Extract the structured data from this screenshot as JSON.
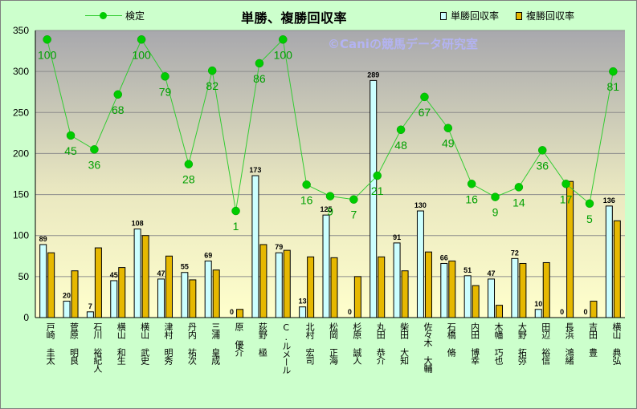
{
  "chart_data": {
    "type": "bar",
    "title": "単勝、複勝回収率",
    "watermark": "©Caniの競馬データ研究室",
    "categories": [
      "戸崎 圭太",
      "菅原 明良",
      "石川 裕紀人",
      "横山 和生",
      "横山 武史",
      "津村 明秀",
      "丹内 祐次",
      "三浦 皇成",
      "原 優介",
      "荻野 極",
      "C.ルメール",
      "北村 宏司",
      "松岡 正海",
      "杉原 誠人",
      "丸田 恭介",
      "柴田 大知",
      "佐々木 大輔",
      "石橋 脩",
      "内田 博幸",
      "木幡 巧也",
      "大野 拓弥",
      "田辺 裕信",
      "長浜 鴻緒",
      "吉田 豊",
      "横山 典弘"
    ],
    "series": [
      {
        "name": "単勝回収率",
        "kind": "bar",
        "color": "#ccffff",
        "values": [
          89,
          20,
          7,
          45,
          108,
          47,
          55,
          69,
          0,
          173,
          79,
          13,
          125,
          0,
          289,
          91,
          130,
          66,
          51,
          47,
          72,
          10,
          0,
          0,
          136
        ],
        "labels": [
          "89",
          "20",
          "7",
          "45",
          "108",
          "47",
          "55",
          "69",
          "0",
          "173",
          "79",
          "13",
          "125",
          "0",
          "289",
          "91",
          "130",
          "66",
          "51",
          "47",
          "72",
          "10",
          "0",
          "0",
          "136"
        ]
      },
      {
        "name": "複勝回収率",
        "kind": "bar",
        "color": "#e6b800",
        "values": [
          79,
          57,
          85,
          61,
          100,
          75,
          46,
          58,
          10,
          89,
          82,
          74,
          73,
          50,
          74,
          57,
          80,
          69,
          39,
          15,
          66,
          67,
          166,
          20,
          118
        ]
      },
      {
        "name": "検定",
        "kind": "line",
        "color": "#00cc00",
        "values": [
          339,
          222,
          205,
          272,
          339,
          294,
          187,
          301,
          130,
          310,
          339,
          162,
          148,
          144,
          173,
          229,
          269,
          231,
          163,
          147,
          159,
          204,
          163,
          139,
          300
        ],
        "labels": [
          "100",
          "45",
          "36",
          "68",
          "100",
          "79",
          "28",
          "82",
          "1",
          "86",
          "100",
          "16",
          "9",
          "7",
          "21",
          "48",
          "67",
          "49",
          "16",
          "9",
          "14",
          "36",
          "17",
          "5",
          "81"
        ]
      }
    ],
    "ylim": [
      0,
      350
    ],
    "yticks": [
      "0",
      "50",
      "100",
      "150",
      "200",
      "250",
      "300",
      "350"
    ],
    "grid": true,
    "legend_position": "top"
  }
}
